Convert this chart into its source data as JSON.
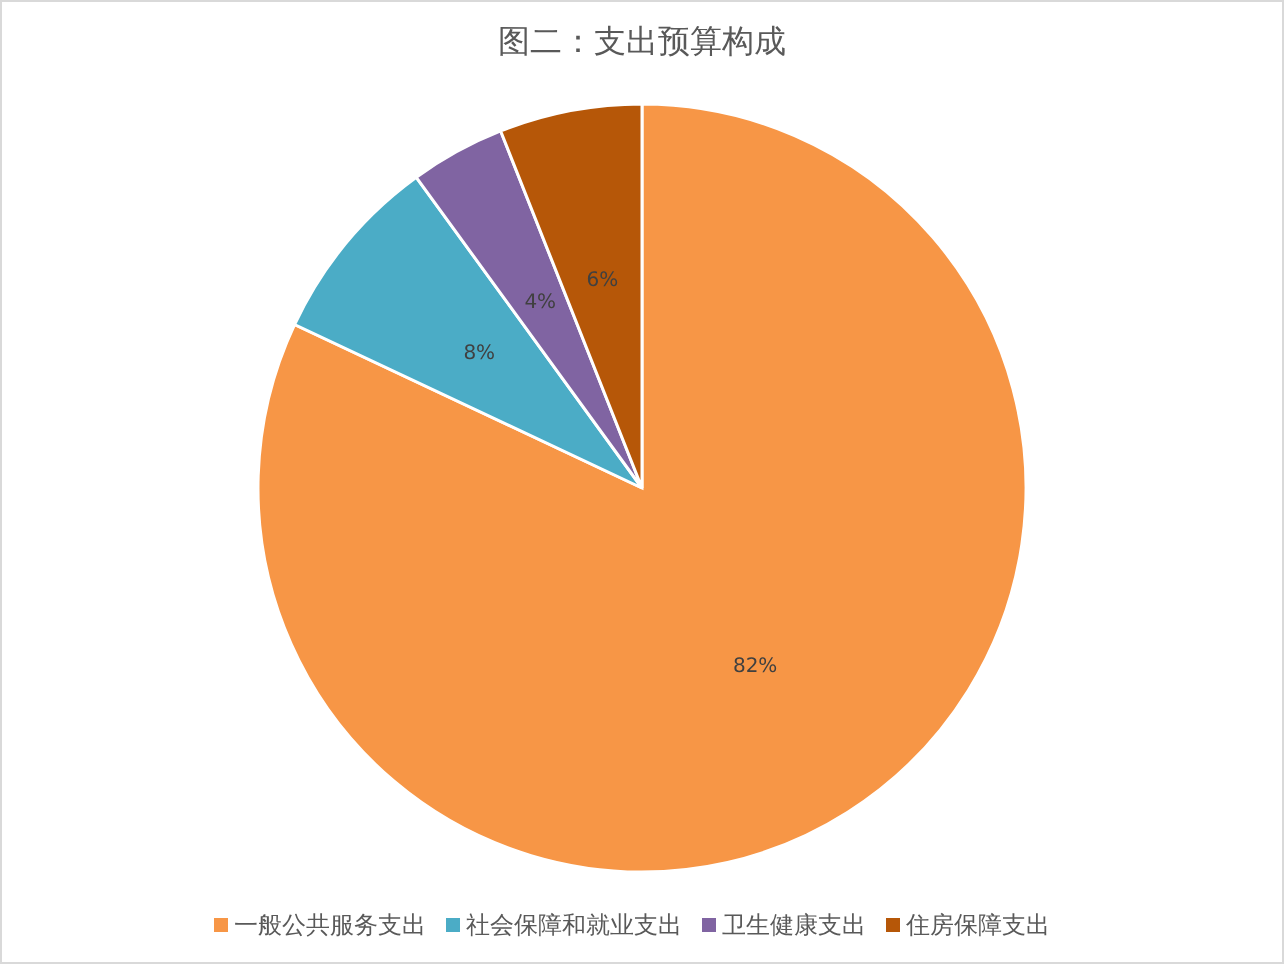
{
  "chart_data": {
    "type": "pie",
    "title": "图二：支出预算构成",
    "categories": [
      "一般公共服务支出",
      "社会保障和就业支出",
      "卫生健康支出",
      "住房保障支出"
    ],
    "values": [
      82,
      8,
      4,
      6
    ],
    "colors": [
      "#f79646",
      "#4bacc6",
      "#8064a2",
      "#b65708"
    ],
    "value_labels": [
      "82%",
      "8%",
      "4%",
      "6%"
    ],
    "legend": "bottom"
  }
}
